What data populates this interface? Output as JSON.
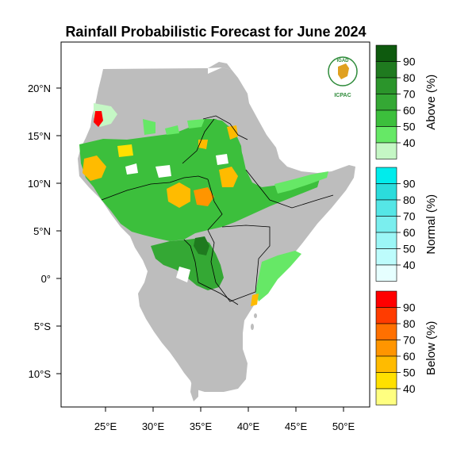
{
  "title": "Rainfall Probabilistic Forecast for June 2024",
  "logo": {
    "top_text": "IGAD",
    "bottom_text": "ICPAC",
    "icon": "igad-emblem"
  },
  "axes": {
    "lon_labels": [
      "25°E",
      "30°E",
      "35°E",
      "40°E",
      "45°E",
      "50°E"
    ],
    "lat_labels": [
      "20°N",
      "15°N",
      "10°N",
      "5°N",
      "0°",
      "5°S",
      "10°S"
    ]
  },
  "colors": {
    "land": "#bdbdbd",
    "no_signal": "#ffffff",
    "above": [
      "#c5f7c5",
      "#66e866",
      "#3cbf3c",
      "#34a834",
      "#2b952b",
      "#1f7a1f",
      "#0e5a0e"
    ],
    "normal": [
      "#e6ffff",
      "#bdfcfc",
      "#9cf6f6",
      "#7aeeee",
      "#55e6e6",
      "#2bdcdc",
      "#00ecec"
    ],
    "below": [
      "#ffff80",
      "#ffe000",
      "#ffbb00",
      "#ff9500",
      "#ff7000",
      "#ff3c00",
      "#ff0000"
    ]
  },
  "colorbars": [
    {
      "title": "Above (%)",
      "labels": [
        "90",
        "80",
        "70",
        "60",
        "50",
        "40"
      ],
      "palette": "above"
    },
    {
      "title": "Normal (%)",
      "labels": [
        "90",
        "80",
        "70",
        "60",
        "50",
        "40"
      ],
      "palette": "normal"
    },
    {
      "title": "Below (%)",
      "labels": [
        "90",
        "80",
        "70",
        "60",
        "50",
        "40"
      ],
      "palette": "below"
    }
  ]
}
